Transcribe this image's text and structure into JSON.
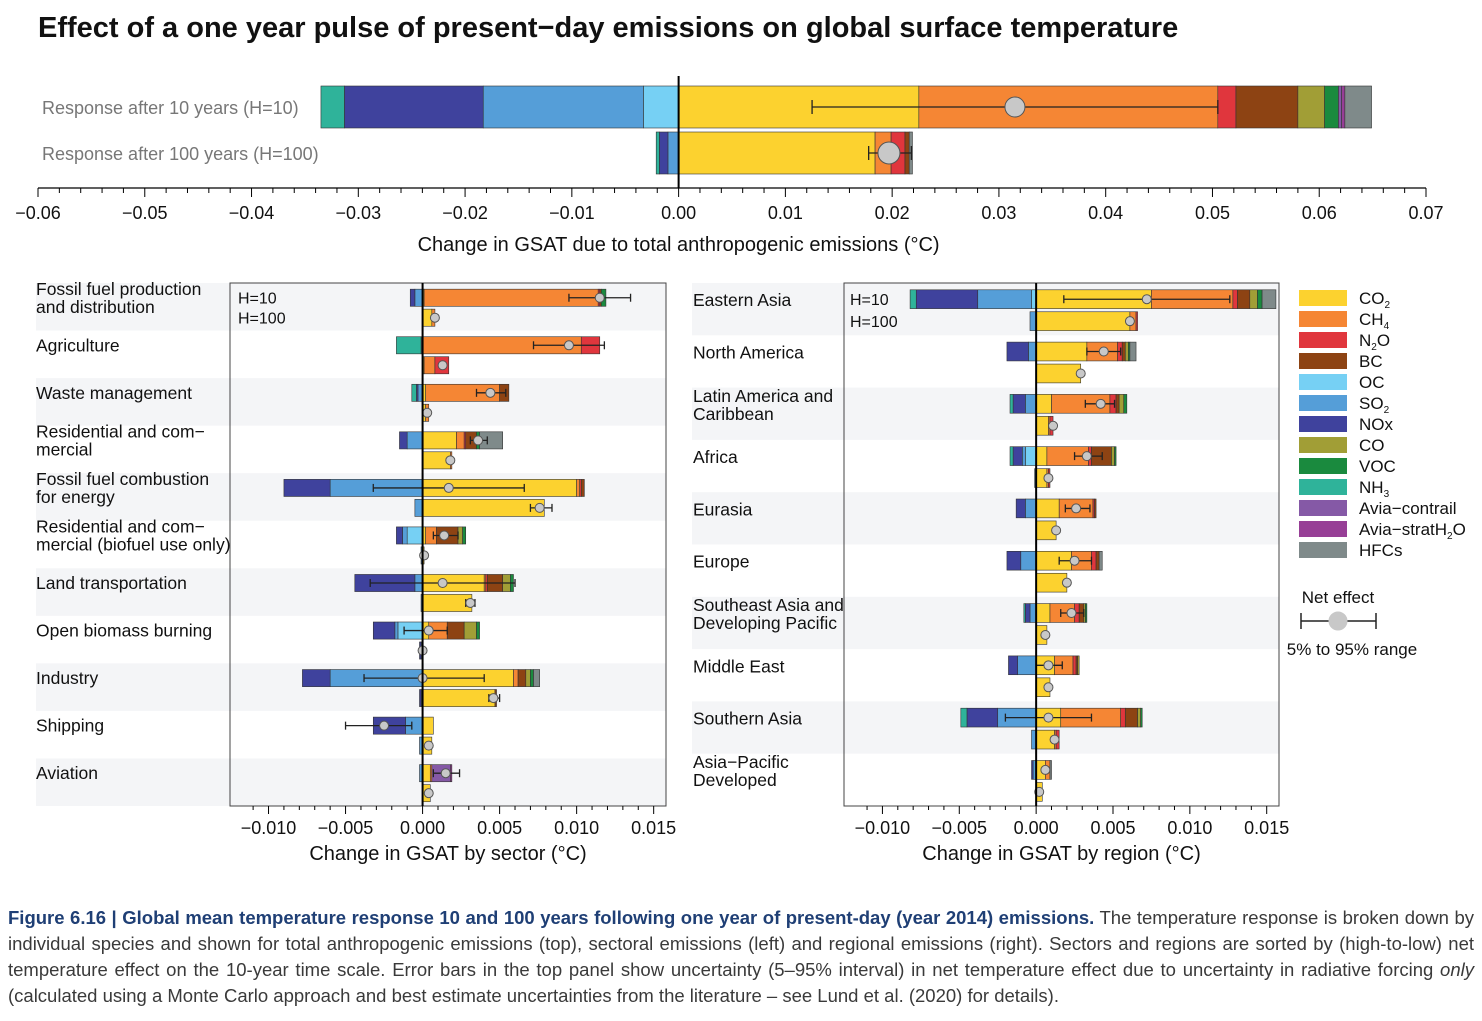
{
  "title": "Effect of a one year pulse of present−day emissions on global surface temperature",
  "species": [
    {
      "key": "CO2",
      "label": "CO",
      "sub": "2",
      "color": "#fcd22f"
    },
    {
      "key": "CH4",
      "label": "CH",
      "sub": "4",
      "color": "#f58634"
    },
    {
      "key": "N2O",
      "label": "N",
      "sub": "2",
      "tail": "O",
      "color": "#e0363d"
    },
    {
      "key": "BC",
      "label": "BC",
      "color": "#8d4313"
    },
    {
      "key": "OC",
      "label": "OC",
      "color": "#76d0f4"
    },
    {
      "key": "SO2",
      "label": "SO",
      "sub": "2",
      "color": "#559ed8"
    },
    {
      "key": "NOx",
      "label": "NOx",
      "color": "#3f429d"
    },
    {
      "key": "CO",
      "label": "CO",
      "color": "#a19e36"
    },
    {
      "key": "VOC",
      "label": "VOC",
      "color": "#1a8a3e"
    },
    {
      "key": "NH3",
      "label": "NH",
      "sub": "3",
      "color": "#2fb39a"
    },
    {
      "key": "AviaContrail",
      "label": "Avia−contrail",
      "color": "#8559a6"
    },
    {
      "key": "AviaStratH2O",
      "label": "Avia−stratH",
      "sub": "2",
      "tail": "O",
      "color": "#973f96"
    },
    {
      "key": "HFCs",
      "label": "HFCs",
      "color": "#7f8a8a"
    }
  ],
  "legend_net": {
    "title": "Net effect",
    "range_label": "5% to 95% range"
  },
  "chart_data": [
    {
      "type": "bar",
      "name": "total",
      "orientation": "horizontal-stacked",
      "xlabel": "Change in GSAT due to total anthropogenic emissions (°C)",
      "xlim": [
        -0.06,
        0.07
      ],
      "xticks": [
        -0.06,
        -0.05,
        -0.04,
        -0.03,
        -0.02,
        -0.01,
        0.0,
        0.01,
        0.02,
        0.03,
        0.04,
        0.05,
        0.06,
        0.07
      ],
      "tick_labels": [
        "−0.06",
        "−0.05",
        "−0.04",
        "−0.03",
        "−0.02",
        "−0.01",
        "0.00",
        "0.01",
        "0.02",
        "0.03",
        "0.04",
        "0.05",
        "0.06",
        "0.07"
      ],
      "rows": [
        {
          "label": "Response after 10 years (H=10)",
          "pos": {
            "CO2": 0.0225,
            "CH4": 0.028,
            "N2O": 0.0017,
            "BC": 0.0058,
            "CO": 0.0025,
            "VOC": 0.0013,
            "AviaContrail": 0.0003,
            "AviaStratH2O": 0.0003,
            "HFCs": 0.0025
          },
          "neg": {
            "OC": 0.0033,
            "SO2": 0.015,
            "NOx": 0.013,
            "NH3": 0.0022
          },
          "net": 0.0315,
          "low": 0.0125,
          "high": 0.0505
        },
        {
          "label": "Response after 100 years (H=100)",
          "pos": {
            "CO2": 0.0184,
            "CH4": 0.0015,
            "N2O": 0.0013,
            "BC": 0.0004,
            "HFCs": 0.0003
          },
          "neg": {
            "SO2": 0.001,
            "NOx": 0.0008,
            "NH3": 0.0003
          },
          "net": 0.0197,
          "low": 0.0178,
          "high": 0.0218
        }
      ]
    },
    {
      "type": "bar",
      "name": "sector",
      "orientation": "horizontal-stacked",
      "xlabel": "Change in GSAT by sector (°C)",
      "xlim": [
        -0.0125,
        0.0158
      ],
      "xticks": [
        -0.01,
        -0.005,
        0.0,
        0.005,
        0.01,
        0.015
      ],
      "tick_labels": [
        "−0.010",
        "−0.005",
        "0.000",
        "0.005",
        "0.010",
        "0.015"
      ],
      "h_labels": [
        "H=10",
        "H=100"
      ],
      "groups": [
        {
          "label": "Fossil fuel production\nand distribution",
          "h10": {
            "pos": {
              "CO2": 0.0001,
              "CH4": 0.0113,
              "N2O": 0.0001,
              "BC": 0.0001,
              "VOC": 0.0003
            },
            "neg": {
              "SO2": 0.0005,
              "NOx": 0.0003
            },
            "net": 0.0115,
            "low": 0.0095,
            "high": 0.0135
          },
          "h100": {
            "pos": {
              "CO2": 0.0006,
              "CH4": 0.0002
            },
            "neg": {},
            "net": 0.0008
          }
        },
        {
          "label": "Agriculture",
          "h10": {
            "pos": {
              "CH4": 0.0103,
              "N2O": 0.0012
            },
            "neg": {
              "NH3": 0.0016,
              "SO2": 0.0001
            },
            "net": 0.0095,
            "low": 0.0072,
            "high": 0.0118
          },
          "h100": {
            "pos": {
              "CO2": 0.0001,
              "CH4": 0.0007,
              "N2O": 0.0009
            },
            "neg": {},
            "net": 0.0013
          }
        },
        {
          "label": "Waste management",
          "h10": {
            "pos": {
              "CO2": 0.0002,
              "CH4": 0.0048,
              "BC": 0.0006
            },
            "neg": {
              "SO2": 0.0003,
              "NOx": 0.0001,
              "NH3": 0.0003
            },
            "net": 0.0044,
            "low": 0.0035,
            "high": 0.0054
          },
          "h100": {
            "pos": {
              "CO2": 0.0002,
              "CH4": 0.0002
            },
            "neg": {},
            "net": 0.0003
          }
        },
        {
          "label": "Residential and com−\nmercial",
          "h10": {
            "pos": {
              "CO2": 0.0022,
              "CH4": 0.0005,
              "N2O": 0.0001,
              "BC": 0.0007,
              "VOC": 0.0002,
              "HFCs": 0.0015
            },
            "neg": {
              "SO2": 0.001,
              "NOx": 0.0005
            },
            "net": 0.0036,
            "low": 0.0031,
            "high": 0.0042
          },
          "h100": {
            "pos": {
              "CO2": 0.0018,
              "CH4": 0.0001
            },
            "neg": {},
            "net": 0.0018
          }
        },
        {
          "label": "Fossil fuel combustion\nfor energy",
          "h10": {
            "pos": {
              "CO2": 0.01,
              "CH4": 0.0002,
              "N2O": 0.0001,
              "BC": 0.0002
            },
            "neg": {
              "SO2": 0.006,
              "NOx": 0.003
            },
            "net": 0.0017,
            "low": -0.0032,
            "high": 0.0066
          },
          "h100": {
            "pos": {
              "CO2": 0.0079
            },
            "neg": {
              "SO2": 0.0005
            },
            "net": 0.0076,
            "low": 0.007,
            "high": 0.0084
          }
        },
        {
          "label": "Residential and com−\nmercial (biofuel use only)",
          "h10": {
            "pos": {
              "CO2": 0.0002,
              "CH4": 0.0007,
              "BC": 0.0014,
              "CO": 0.0003,
              "VOC": 0.0002
            },
            "neg": {
              "OC": 0.001,
              "SO2": 0.0003,
              "NOx": 0.0004
            },
            "net": 0.0014,
            "low": 0.0007,
            "high": 0.0023
          },
          "h100": {
            "pos": {
              "CO2": 0.0001
            },
            "neg": {
              "SO2": 0.0001
            },
            "net": 0.0001
          }
        },
        {
          "label": "Land transportation",
          "h10": {
            "pos": {
              "CO2": 0.004,
              "CH4": 0.0001,
              "N2O": 0.0001,
              "BC": 0.001,
              "CO": 0.0005,
              "VOC": 0.0002
            },
            "neg": {
              "SO2": 0.0005,
              "NOx": 0.0039
            },
            "net": 0.0013,
            "low": -0.0034,
            "high": 0.006
          },
          "h100": {
            "pos": {
              "CO2": 0.0032
            },
            "neg": {
              "SO2": 0.0001
            },
            "net": 0.0031,
            "low": 0.0028,
            "high": 0.0034
          }
        },
        {
          "label": "Open biomass burning",
          "h10": {
            "pos": {
              "CO2": 0.0004,
              "CH4": 0.0012,
              "BC": 0.0011,
              "CO": 0.0008,
              "VOC": 0.0002
            },
            "neg": {
              "OC": 0.0016,
              "SO2": 0.0002,
              "NOx": 0.0014
            },
            "net": 0.0004,
            "low": -0.0012,
            "high": 0.0016
          },
          "h100": {
            "pos": {},
            "neg": {
              "SO2": 0.0001,
              "NOx": 0.0001
            },
            "net": 0.0
          }
        },
        {
          "label": "Industry",
          "h10": {
            "pos": {
              "CO2": 0.0059,
              "CH4": 0.0003,
              "BC": 0.0005,
              "CO": 0.0003,
              "VOC": 0.0002,
              "HFCs": 0.0004
            },
            "neg": {
              "SO2": 0.006,
              "NOx": 0.0018
            },
            "net": 0.0,
            "low": -0.0038,
            "high": 0.004
          },
          "h100": {
            "pos": {
              "CO2": 0.0047,
              "BC": 0.0001
            },
            "neg": {
              "SO2": 0.0001,
              "NOx": 0.0001
            },
            "net": 0.0046,
            "low": 0.0043,
            "high": 0.005
          }
        },
        {
          "label": "Shipping",
          "h10": {
            "pos": {
              "CO2": 0.0007
            },
            "neg": {
              "SO2": 0.0011,
              "NOx": 0.0021
            },
            "net": -0.0025,
            "low": -0.005,
            "high": -0.0007
          },
          "h100": {
            "pos": {
              "CO2": 0.0006
            },
            "neg": {
              "SO2": 0.0002
            },
            "net": 0.0004
          }
        },
        {
          "label": "Aviation",
          "h10": {
            "pos": {
              "CO2": 0.0005,
              "CH4": 0.0001,
              "AviaContrail": 0.0012,
              "AviaStratH2O": 0.0001
            },
            "neg": {
              "SO2": 0.0002
            },
            "net": 0.0015,
            "low": 0.0007,
            "high": 0.0024
          },
          "h100": {
            "pos": {
              "CO2": 0.0005
            },
            "neg": {},
            "net": 0.0004
          }
        }
      ]
    },
    {
      "type": "bar",
      "name": "region",
      "orientation": "horizontal-stacked",
      "xlabel": "Change in GSAT by region (°C)",
      "xlim": [
        -0.0125,
        0.0158
      ],
      "xticks": [
        -0.01,
        -0.005,
        0.0,
        0.005,
        0.01,
        0.015
      ],
      "tick_labels": [
        "−0.010",
        "−0.005",
        "0.000",
        "0.005",
        "0.010",
        "0.015"
      ],
      "h_labels": [
        "H=10",
        "H=100"
      ],
      "groups": [
        {
          "label": "Eastern Asia",
          "h10": {
            "pos": {
              "CO2": 0.0075,
              "CH4": 0.0053,
              "N2O": 0.0003,
              "BC": 0.0008,
              "CO": 0.0005,
              "VOC": 0.0003,
              "HFCs": 0.0009
            },
            "neg": {
              "OC": 0.0003,
              "SO2": 0.0035,
              "NOx": 0.004,
              "NH3": 0.0004
            },
            "net": 0.0072,
            "low": 0.0018,
            "high": 0.0126
          },
          "h100": {
            "pos": {
              "CO2": 0.0061,
              "CH4": 0.0004,
              "N2O": 0.0001
            },
            "neg": {
              "SO2": 0.0004
            },
            "net": 0.0061
          }
        },
        {
          "label": "North America",
          "h10": {
            "pos": {
              "CO2": 0.0033,
              "CH4": 0.002,
              "N2O": 0.0003,
              "BC": 0.0002,
              "CO": 0.0002,
              "VOC": 0.0001,
              "HFCs": 0.0004
            },
            "neg": {
              "SO2": 0.0005,
              "NOx": 0.0014
            },
            "net": 0.0044,
            "low": 0.0033,
            "high": 0.0055
          },
          "h100": {
            "pos": {
              "CO2": 0.0029
            },
            "neg": {},
            "net": 0.0029
          }
        },
        {
          "label": "Latin America and\nCaribbean",
          "h10": {
            "pos": {
              "CO2": 0.001,
              "CH4": 0.0038,
              "N2O": 0.0004,
              "BC": 0.0002,
              "CO": 0.0003,
              "VOC": 0.0002
            },
            "neg": {
              "SO2": 0.0007,
              "NOx": 0.0008,
              "NH3": 0.0002
            },
            "net": 0.0042,
            "low": 0.0032,
            "high": 0.0051
          },
          "h100": {
            "pos": {
              "CO2": 0.0008,
              "CH4": 0.0001,
              "N2O": 0.0002
            },
            "neg": {},
            "net": 0.0011
          }
        },
        {
          "label": "Africa",
          "h10": {
            "pos": {
              "CO2": 0.0007,
              "CH4": 0.0027,
              "N2O": 0.0002,
              "BC": 0.0013,
              "CO": 0.0002,
              "VOC": 0.0001
            },
            "neg": {
              "OC": 0.0007,
              "SO2": 0.0002,
              "NOx": 0.0006,
              "NH3": 0.0002
            },
            "net": 0.0033,
            "low": 0.0025,
            "high": 0.0043
          },
          "h100": {
            "pos": {
              "CO2": 0.0007,
              "CH4": 0.0001,
              "N2O": 0.0001
            },
            "neg": {
              "SO2": 0.0001
            },
            "net": 0.0008
          }
        },
        {
          "label": "Eurasia",
          "h10": {
            "pos": {
              "CO2": 0.0015,
              "CH4": 0.0022,
              "N2O": 0.0001,
              "BC": 0.0001
            },
            "neg": {
              "SO2": 0.0007,
              "NOx": 0.0006
            },
            "net": 0.0026,
            "low": 0.0019,
            "high": 0.0035
          },
          "h100": {
            "pos": {
              "CO2": 0.0013
            },
            "neg": {},
            "net": 0.0013
          }
        },
        {
          "label": "Europe",
          "h10": {
            "pos": {
              "CO2": 0.0023,
              "CH4": 0.0013,
              "N2O": 0.0003,
              "BC": 0.0002,
              "HFCs": 0.0002
            },
            "neg": {
              "SO2": 0.001,
              "NOx": 0.0009
            },
            "net": 0.0025,
            "low": 0.0015,
            "high": 0.0036
          },
          "h100": {
            "pos": {
              "CO2": 0.002
            },
            "neg": {},
            "net": 0.002
          }
        },
        {
          "label": "Southeast Asia and\nDeveloping Pacific",
          "h10": {
            "pos": {
              "CO2": 0.0009,
              "CH4": 0.0016,
              "N2O": 0.0003,
              "BC": 0.0003,
              "CO": 0.0001,
              "VOC": 0.0001
            },
            "neg": {
              "SO2": 0.0004,
              "NOx": 0.0003,
              "NH3": 0.0001
            },
            "net": 0.0023,
            "low": 0.0016,
            "high": 0.0031
          },
          "h100": {
            "pos": {
              "CO2": 0.0007
            },
            "neg": {},
            "net": 0.0006
          }
        },
        {
          "label": "Middle East",
          "h10": {
            "pos": {
              "CO2": 0.0012,
              "CH4": 0.0012,
              "N2O": 0.0002,
              "BC": 0.0001,
              "CO": 0.0001
            },
            "neg": {
              "SO2": 0.0012,
              "NOx": 0.0006
            },
            "net": 0.0008,
            "low": 0.0,
            "high": 0.0017
          },
          "h100": {
            "pos": {
              "CO2": 0.0009
            },
            "neg": {},
            "net": 0.0008
          }
        },
        {
          "label": "Southern Asia",
          "h10": {
            "pos": {
              "CO2": 0.0016,
              "CH4": 0.0039,
              "N2O": 0.0003,
              "BC": 0.0008,
              "CO": 0.0002,
              "VOC": 0.0001
            },
            "neg": {
              "SO2": 0.0025,
              "NOx": 0.002,
              "NH3": 0.0004
            },
            "net": 0.0008,
            "low": -0.002,
            "high": 0.0036
          },
          "h100": {
            "pos": {
              "CO2": 0.0012,
              "CH4": 0.0001,
              "N2O": 0.0002
            },
            "neg": {
              "SO2": 0.0003
            },
            "net": 0.0012
          }
        },
        {
          "label": "Asia−Pacific\nDeveloped",
          "h10": {
            "pos": {
              "CO2": 0.0006,
              "CH4": 0.0003,
              "HFCs": 0.0001
            },
            "neg": {
              "SO2": 0.0002,
              "NOx": 0.0001
            },
            "net": 0.0006
          },
          "h100": {
            "pos": {
              "CO2": 0.0004
            },
            "neg": {},
            "net": 0.0002
          }
        }
      ]
    }
  ],
  "caption": {
    "lead": "Figure 6.16 | Global mean temperature response 10 and 100 years following one year of present-day (year 2014) emissions.",
    "body1": " The temperature response is broken down by individual species and shown for total anthropogenic emissions (top), sectoral emissions (left) and regional emissions (right). Sectors and regions are sorted by (high-to-low) net temperature effect on the 10-year time scale. Error bars in the top panel show uncertainty (5–95% interval) in net temperature effect due to uncertainty in radiative forcing ",
    "ital": "only",
    "body2": " (calculated using a Monte Carlo approach and best estimate uncertainties from the literature – see Lund et al. (2020) for details)."
  }
}
